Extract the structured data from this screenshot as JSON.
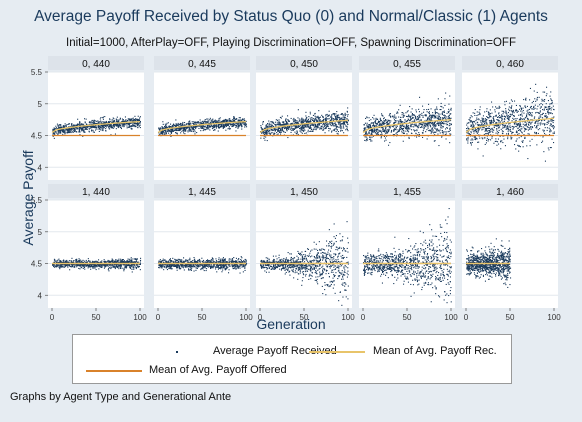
{
  "chart_data": {
    "type": "scatter",
    "title": "Average Payoff Received by Status Quo (0) and Normal/Classic (1) Agents",
    "subtitle": "Initial=1000, AfterPlay=OFF, Playing Discrimination=OFF, Spawning Discrimination=OFF",
    "xlabel": "Generation",
    "ylabel": "Average Payoff",
    "xlim": [
      0,
      100
    ],
    "ylim": [
      3.8,
      5.5
    ],
    "xticks": [
      0,
      50,
      100
    ],
    "yticks": [
      4,
      4.5,
      5,
      5.5
    ],
    "grid": true,
    "note": "Graphs by Agent Type and Generational Ante",
    "colors": {
      "points": "#1a3a5c",
      "mean_received": "#e8c46a",
      "mean_offered": "#d9822b",
      "panel_header": "#dde3ea",
      "background": "#e6ecf2"
    },
    "legend": {
      "placement": "bottom",
      "entries": [
        "Average Payoff Received",
        "Mean of Avg. Payoff Rec.",
        "Mean of Avg. Payoff Offered"
      ]
    },
    "panels": [
      {
        "label": "0, 440",
        "gen_max": 100,
        "mean_start": 4.55,
        "mean_end": 4.72,
        "spread": 0.04,
        "offered": 4.5,
        "offered_end": 100,
        "fan": 0
      },
      {
        "label": "0, 445",
        "gen_max": 100,
        "mean_start": 4.55,
        "mean_end": 4.72,
        "spread": 0.04,
        "offered": 4.5,
        "offered_end": 100,
        "fan": 0
      },
      {
        "label": "0, 450",
        "gen_max": 100,
        "mean_start": 4.55,
        "mean_end": 4.74,
        "spread": 0.06,
        "offered": 4.5,
        "offered_end": 100,
        "fan": 0.02
      },
      {
        "label": "0, 455",
        "gen_max": 100,
        "mean_start": 4.55,
        "mean_end": 4.75,
        "spread": 0.09,
        "offered": 4.5,
        "offered_end": 100,
        "fan": 0.05
      },
      {
        "label": "0, 460",
        "gen_max": 100,
        "mean_start": 4.55,
        "mean_end": 4.77,
        "spread": 0.13,
        "offered": 4.5,
        "offered_end": 100,
        "fan": 0.1
      },
      {
        "label": "1, 440",
        "gen_max": 100,
        "mean_start": 4.5,
        "mean_end": 4.5,
        "spread": 0.03,
        "offered": 4.5,
        "offered_end": 100,
        "fan": 0.01
      },
      {
        "label": "1, 445",
        "gen_max": 100,
        "mean_start": 4.5,
        "mean_end": 4.5,
        "spread": 0.035,
        "offered": 4.5,
        "offered_end": 100,
        "fan": 0.015
      },
      {
        "label": "1, 450",
        "gen_max": 100,
        "mean_start": 4.5,
        "mean_end": 4.5,
        "spread": 0.04,
        "offered": 4.5,
        "offered_end": 100,
        "fan": 0.25
      },
      {
        "label": "1, 455",
        "gen_max": 100,
        "mean_start": 4.5,
        "mean_end": 4.5,
        "spread": 0.08,
        "offered": 4.5,
        "offered_end": 100,
        "fan": 0.25
      },
      {
        "label": "1, 460",
        "gen_max": 50,
        "mean_start": 4.5,
        "mean_end": 4.5,
        "spread": 0.08,
        "offered": 4.5,
        "offered_end": 50,
        "fan": 0.22
      }
    ]
  }
}
